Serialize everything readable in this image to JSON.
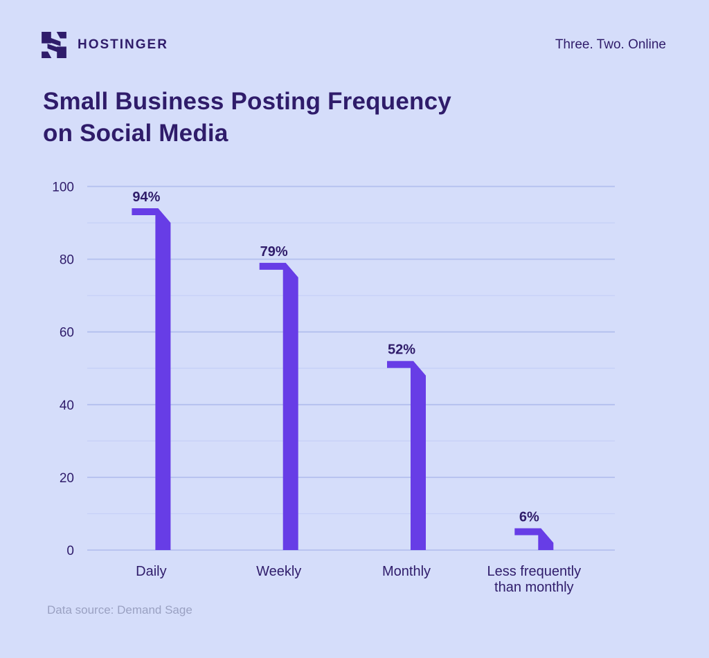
{
  "header": {
    "brand": "HOSTINGER",
    "tagline": "Three. Two. Online"
  },
  "title_lines": [
    "Small Business Posting Frequency",
    "on Social Media"
  ],
  "footer": {
    "source": "Data source: Demand Sage"
  },
  "colors": {
    "background": "#D5DDFA",
    "accent": "#673DE6",
    "dark_text": "#2F1C6A",
    "grid_major": "#B3BFEE",
    "grid_minor": "#C7D1F7",
    "muted_text": "#9AA1C2"
  },
  "chart_data": {
    "type": "bar",
    "title": "Small Business Posting Frequency on Social Media",
    "categories": [
      "Daily",
      "Weekly",
      "Monthly",
      "Less frequently\nthan monthly"
    ],
    "values": [
      94,
      79,
      52,
      6
    ],
    "value_labels": [
      "94%",
      "79%",
      "52%",
      "6%"
    ],
    "xlabel": "",
    "ylabel": "",
    "ylim": [
      0,
      100
    ],
    "yticks": [
      0,
      20,
      40,
      60,
      80,
      100
    ],
    "grid_step": 10,
    "grid": true,
    "legend": false,
    "bar_color": "#673DE6",
    "bar_style": "flag-fold-top",
    "source": "Data source: Demand Sage"
  }
}
